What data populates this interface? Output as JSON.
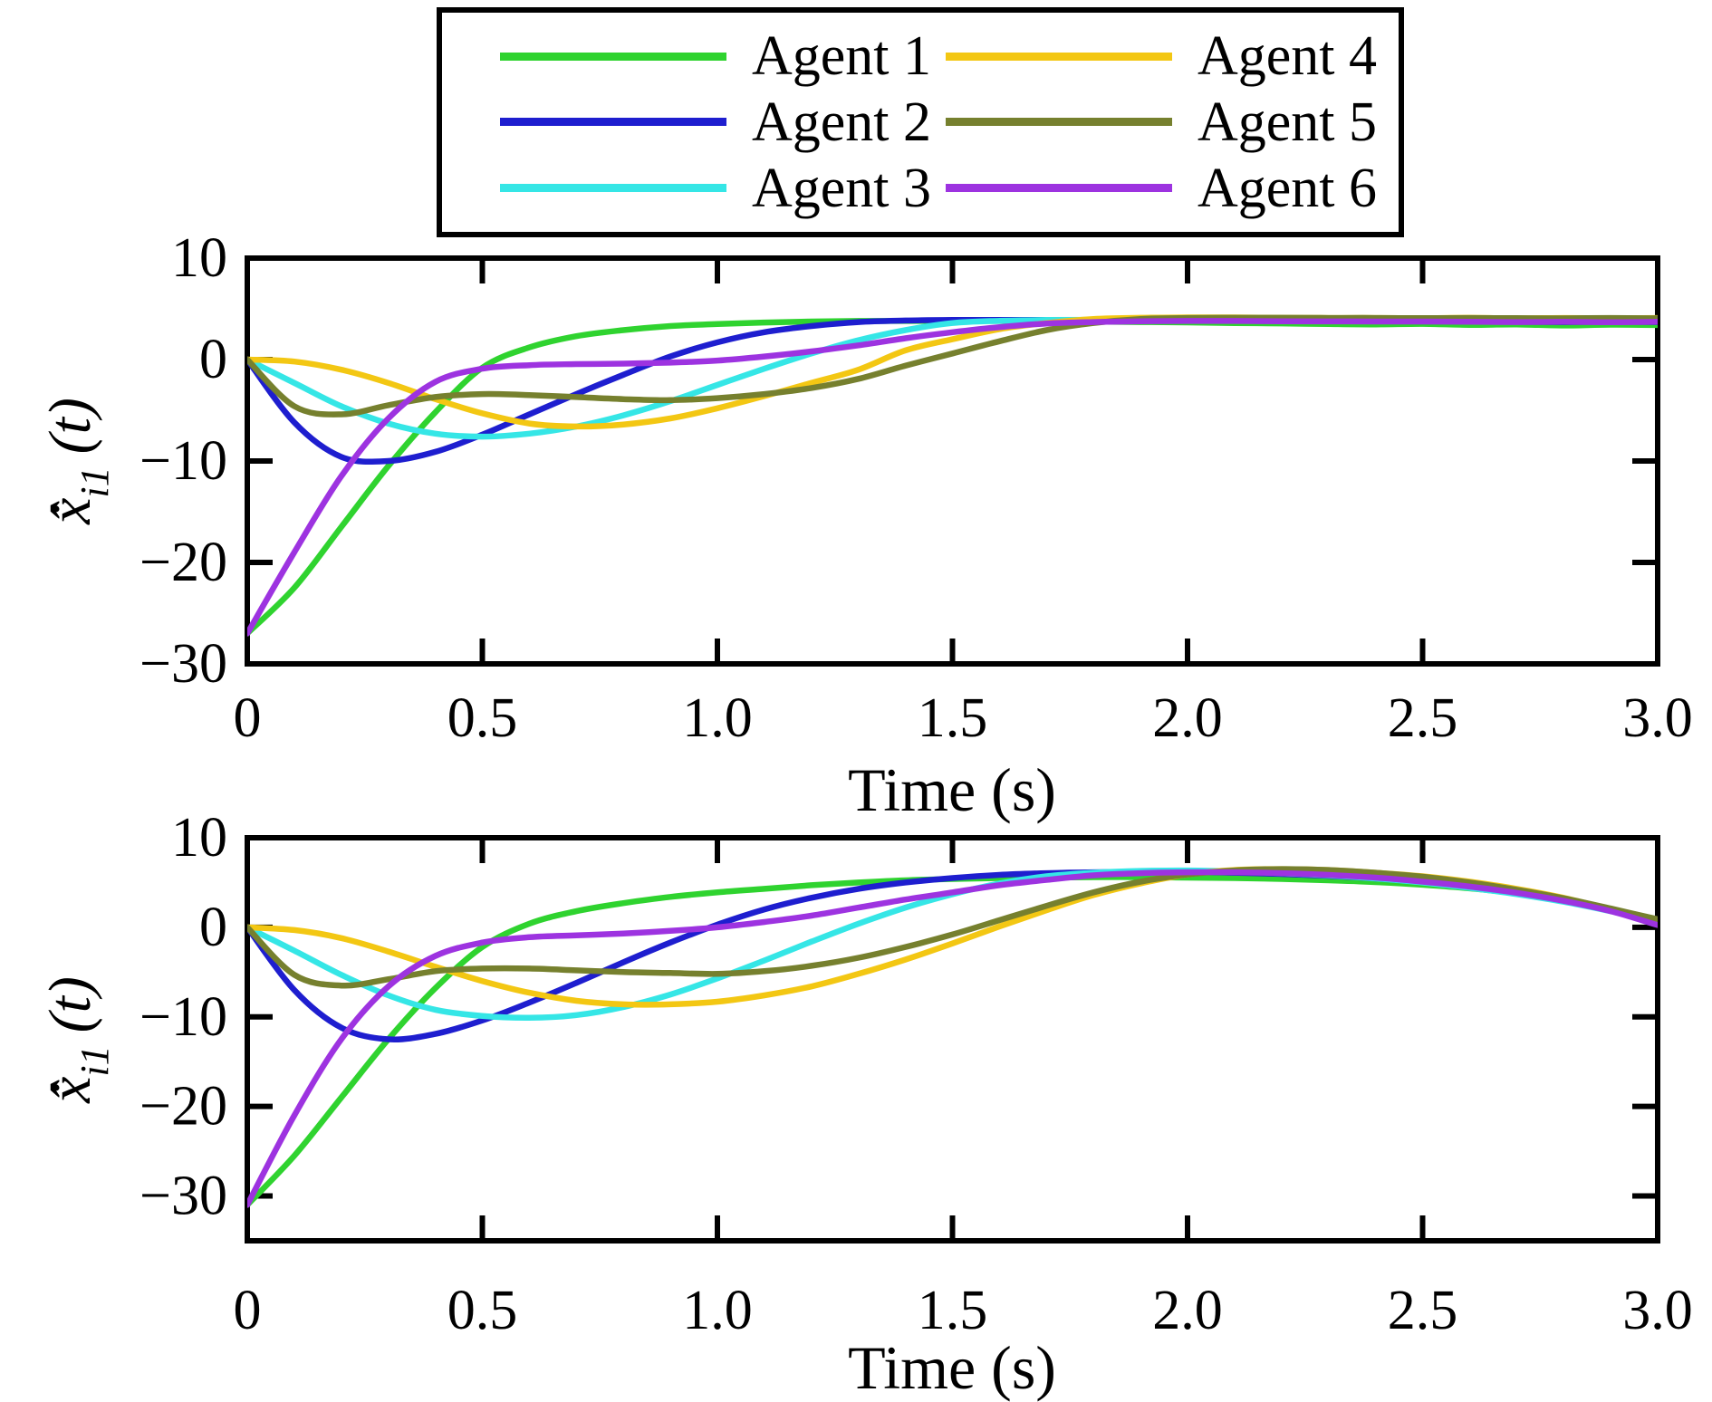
{
  "figure": {
    "background": "#ffffff"
  },
  "legend": {
    "columns": 2,
    "items": [
      {
        "label": "Agent 1",
        "color": "#2fd32f"
      },
      {
        "label": "Agent 2",
        "color": "#1e1ecf"
      },
      {
        "label": "Agent 3",
        "color": "#35e6e6"
      },
      {
        "label": "Agent 4",
        "color": "#f3c713"
      },
      {
        "label": "Agent 5",
        "color": "#76802e"
      },
      {
        "label": "Agent 6",
        "color": "#9d33e0"
      }
    ]
  },
  "chart_data": [
    {
      "type": "line",
      "position": "top",
      "title": "",
      "xlabel": "Time (s)",
      "ylabel": {
        "base": "x̂̇",
        "sub": "i1",
        "suffix": "(t)"
      },
      "xlim": [
        0,
        3
      ],
      "ylim": [
        -30,
        10
      ],
      "grid": false,
      "legend_position": "top-outside",
      "xticks": {
        "values": [
          0,
          0.5,
          1,
          1.5,
          2,
          2.5,
          3
        ],
        "labels": [
          "0",
          "0.5",
          "1.0",
          "1.5",
          "2.0",
          "2.5",
          "3.0"
        ]
      },
      "yticks": {
        "values": [
          10,
          0,
          -10,
          -20,
          -30
        ],
        "labels": [
          "10",
          "0",
          "−10",
          "−20",
          "−30"
        ]
      },
      "x_start": 0,
      "x_step": 0.1,
      "series": [
        {
          "name": "Agent 1",
          "color": "#2fd32f",
          "values": [
            -27,
            -22.5,
            -16.5,
            -10.5,
            -5.2,
            -0.8,
            1.2,
            2.3,
            2.9,
            3.3,
            3.5,
            3.65,
            3.75,
            3.8,
            3.8,
            3.8,
            3.8,
            3.78,
            3.74,
            3.7,
            3.66,
            3.6,
            3.56,
            3.5,
            3.46,
            3.52,
            3.42,
            3.46,
            3.36,
            3.44,
            3.4
          ]
        },
        {
          "name": "Agent 2",
          "color": "#1e1ecf",
          "values": [
            0,
            -6.2,
            -9.6,
            -10,
            -9.1,
            -7.4,
            -5.4,
            -3.4,
            -1.5,
            0.3,
            1.7,
            2.7,
            3.3,
            3.7,
            3.85,
            3.9,
            3.9,
            3.9,
            3.88,
            3.86,
            3.85,
            3.83,
            3.8,
            3.8,
            3.78,
            3.76,
            3.75,
            3.73,
            3.7,
            3.73,
            3.7
          ]
        },
        {
          "name": "Agent 3",
          "color": "#35e6e6",
          "values": [
            0,
            -2.3,
            -4.6,
            -6.3,
            -7.3,
            -7.6,
            -7.3,
            -6.6,
            -5.5,
            -4.1,
            -2.5,
            -0.9,
            0.6,
            1.9,
            2.9,
            3.6,
            3.82,
            3.9,
            3.92,
            3.9,
            3.88,
            3.86,
            3.85,
            3.83,
            3.8,
            3.8,
            3.78,
            3.76,
            3.75,
            3.73,
            3.76
          ]
        },
        {
          "name": "Agent 4",
          "color": "#f3c713",
          "values": [
            0,
            -0.2,
            -1.0,
            -2.3,
            -3.9,
            -5.3,
            -6.3,
            -6.6,
            -6.4,
            -5.8,
            -4.8,
            -3.6,
            -2.3,
            -1.0,
            0.9,
            2.0,
            3.0,
            3.6,
            4.0,
            4.12,
            4.15,
            4.15,
            4.12,
            4.1,
            4.1,
            4.08,
            4.12,
            4.06,
            4.1,
            4.06,
            4.1
          ]
        },
        {
          "name": "Agent 5",
          "color": "#76802e",
          "values": [
            0,
            -4.6,
            -5.4,
            -4.5,
            -3.7,
            -3.4,
            -3.5,
            -3.7,
            -3.9,
            -4.0,
            -3.8,
            -3.4,
            -2.8,
            -1.9,
            -0.6,
            0.6,
            1.8,
            2.9,
            3.6,
            4.0,
            4.1,
            4.12,
            4.12,
            4.1,
            4.1,
            4.08,
            4.1,
            4.08,
            4.06,
            4.1,
            4.06
          ]
        },
        {
          "name": "Agent 6",
          "color": "#9d33e0",
          "values": [
            -27,
            -19,
            -11.5,
            -5.8,
            -2.2,
            -0.9,
            -0.55,
            -0.45,
            -0.4,
            -0.3,
            -0.1,
            0.3,
            0.8,
            1.4,
            2.1,
            2.7,
            3.2,
            3.55,
            3.7,
            3.78,
            3.8,
            3.8,
            3.78,
            3.76,
            3.75,
            3.75,
            3.72,
            3.7,
            3.72,
            3.68,
            3.72
          ]
        }
      ]
    },
    {
      "type": "line",
      "position": "bottom",
      "title": "",
      "xlabel": "Time (s)",
      "ylabel": {
        "base": "x̂̇",
        "sub": "i1",
        "suffix": "(t)"
      },
      "xlim": [
        0,
        3
      ],
      "ylim": [
        -35,
        10
      ],
      "grid": false,
      "xticks": {
        "values": [
          0,
          0.5,
          1,
          1.5,
          2,
          2.5,
          3
        ],
        "labels": [
          "0",
          "0.5",
          "1.0",
          "1.5",
          "2.0",
          "2.5",
          "3.0"
        ]
      },
      "yticks": {
        "values": [
          10,
          0,
          -10,
          -20,
          -30
        ],
        "labels": [
          "10",
          "0",
          "−10",
          "−20",
          "−30"
        ]
      },
      "x_start": 0,
      "x_step": 0.1,
      "series": [
        {
          "name": "Agent 1",
          "color": "#2fd32f",
          "values": [
            -31,
            -25.5,
            -19,
            -12.5,
            -6.8,
            -2.2,
            0.4,
            1.8,
            2.7,
            3.4,
            3.9,
            4.3,
            4.7,
            5.0,
            5.25,
            5.4,
            5.5,
            5.55,
            5.6,
            5.6,
            5.55,
            5.5,
            5.4,
            5.25,
            5.05,
            4.75,
            4.35,
            3.8,
            3.1,
            2.0,
            0.5
          ]
        },
        {
          "name": "Agent 2",
          "color": "#1e1ecf",
          "values": [
            0,
            -7.0,
            -11.2,
            -12.5,
            -11.9,
            -10.4,
            -8.4,
            -6.2,
            -3.9,
            -1.7,
            0.3,
            2.0,
            3.3,
            4.3,
            5.0,
            5.5,
            5.85,
            6.05,
            6.15,
            6.2,
            6.2,
            6.1,
            5.95,
            5.75,
            5.45,
            5.05,
            4.55,
            3.9,
            3.05,
            1.95,
            0.6
          ]
        },
        {
          "name": "Agent 3",
          "color": "#35e6e6",
          "values": [
            0,
            -2.6,
            -5.3,
            -7.6,
            -9.2,
            -9.9,
            -10.1,
            -9.8,
            -8.9,
            -7.5,
            -5.7,
            -3.7,
            -1.6,
            0.4,
            2.2,
            3.7,
            4.9,
            5.7,
            6.1,
            6.3,
            6.35,
            6.25,
            6.05,
            5.8,
            5.45,
            5.0,
            4.4,
            3.7,
            2.85,
            1.8,
            0.7
          ]
        },
        {
          "name": "Agent 4",
          "color": "#f3c713",
          "values": [
            0,
            -0.3,
            -1.2,
            -2.7,
            -4.4,
            -6.0,
            -7.3,
            -8.2,
            -8.6,
            -8.6,
            -8.3,
            -7.6,
            -6.6,
            -5.2,
            -3.6,
            -1.8,
            0.1,
            1.9,
            3.6,
            4.9,
            5.9,
            6.4,
            6.5,
            6.4,
            6.1,
            5.7,
            5.1,
            4.3,
            3.3,
            2.0,
            0.85
          ]
        },
        {
          "name": "Agent 5",
          "color": "#76802e",
          "values": [
            0,
            -5.3,
            -6.5,
            -5.8,
            -4.9,
            -4.6,
            -4.6,
            -4.8,
            -5.0,
            -5.1,
            -5.2,
            -4.9,
            -4.3,
            -3.4,
            -2.2,
            -0.8,
            0.8,
            2.4,
            3.9,
            5.1,
            5.9,
            6.35,
            6.5,
            6.4,
            6.1,
            5.65,
            5.0,
            4.2,
            3.25,
            2.1,
            0.9
          ]
        },
        {
          "name": "Agent 6",
          "color": "#9d33e0",
          "values": [
            -31,
            -21,
            -12.5,
            -6.6,
            -3.2,
            -1.7,
            -1.1,
            -0.9,
            -0.7,
            -0.4,
            0.0,
            0.6,
            1.3,
            2.2,
            3.1,
            3.9,
            4.7,
            5.3,
            5.8,
            6.05,
            6.15,
            6.15,
            6.05,
            5.85,
            5.55,
            5.1,
            4.55,
            3.85,
            2.95,
            1.8,
            0.25
          ]
        }
      ]
    }
  ]
}
